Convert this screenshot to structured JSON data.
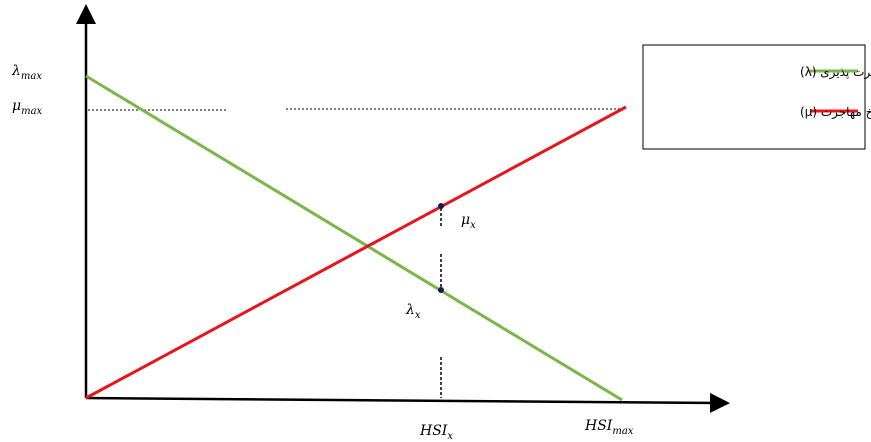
{
  "labels": {
    "lambda_max": {
      "base": "λ",
      "sub": "max"
    },
    "mu_max": {
      "base": "μ",
      "sub": "max"
    },
    "mu_x": {
      "base": "μ",
      "sub": "x"
    },
    "lambda_x": {
      "base": "λ",
      "sub": "x"
    },
    "hsi_x": {
      "base": "HSI",
      "sub": "x"
    },
    "hsi_max": {
      "base": "HSI",
      "sub": "max"
    }
  },
  "legend": {
    "immigration_label": "نرخ مهاجرت پذیری (λ)",
    "emigration_label": "نرخ مهاجرت (μ)"
  },
  "colors": {
    "immigration": "#7ab648",
    "emigration": "#e8141c",
    "axis": "#000000"
  }
}
